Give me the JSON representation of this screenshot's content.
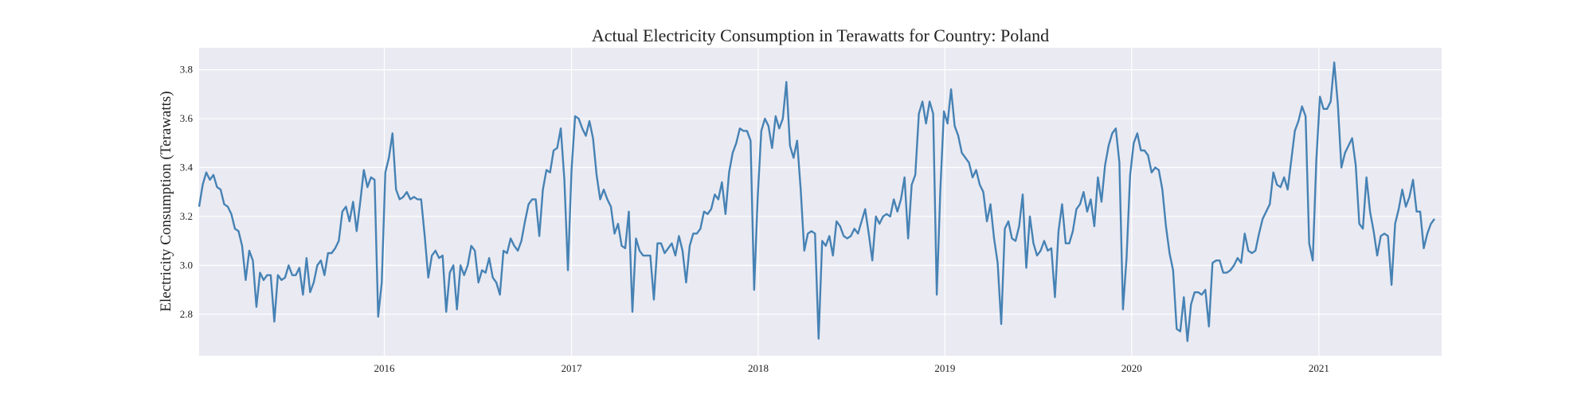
{
  "chart_data": {
    "type": "line",
    "title": "Actual Electricity Consumption in Terawatts for Country: Poland",
    "xlabel": "",
    "ylabel": "Electricity Consumption (Terawatts)",
    "xlim": [
      "2015-01-04",
      "2021-08-29"
    ],
    "ylim": [
      2.63,
      3.89
    ],
    "x_ticks": [
      "2016",
      "2017",
      "2018",
      "2019",
      "2020",
      "2021"
    ],
    "y_ticks": [
      "2.8",
      "3.0",
      "3.2",
      "3.4",
      "3.6",
      "3.8"
    ],
    "grid": true,
    "series": [
      {
        "color": "#4682b4",
        "x_start": "2015-01-04",
        "x_step_days": 7,
        "values": [
          3.24,
          3.33,
          3.38,
          3.35,
          3.37,
          3.32,
          3.31,
          3.25,
          3.24,
          3.21,
          3.15,
          3.14,
          3.08,
          2.94,
          3.06,
          3.02,
          2.83,
          2.97,
          2.94,
          2.96,
          2.96,
          2.77,
          2.96,
          2.94,
          2.95,
          3.0,
          2.96,
          2.96,
          2.99,
          2.88,
          3.03,
          2.89,
          2.93,
          3.0,
          3.02,
          2.96,
          3.05,
          3.05,
          3.07,
          3.1,
          3.22,
          3.24,
          3.18,
          3.26,
          3.14,
          3.26,
          3.39,
          3.32,
          3.36,
          3.35,
          2.79,
          2.93,
          3.38,
          3.44,
          3.54,
          3.31,
          3.27,
          3.28,
          3.3,
          3.27,
          3.28,
          3.27,
          3.27,
          3.12,
          2.95,
          3.04,
          3.06,
          3.03,
          3.04,
          2.81,
          2.97,
          3.0,
          2.82,
          3.0,
          2.96,
          3.0,
          3.08,
          3.06,
          2.93,
          2.98,
          2.97,
          3.03,
          2.95,
          2.93,
          2.88,
          3.06,
          3.05,
          3.11,
          3.08,
          3.06,
          3.1,
          3.18,
          3.25,
          3.27,
          3.27,
          3.12,
          3.31,
          3.39,
          3.38,
          3.47,
          3.48,
          3.56,
          3.35,
          2.98,
          3.39,
          3.61,
          3.6,
          3.56,
          3.53,
          3.59,
          3.52,
          3.37,
          3.27,
          3.31,
          3.27,
          3.24,
          3.13,
          3.17,
          3.08,
          3.07,
          3.22,
          2.81,
          3.11,
          3.06,
          3.04,
          3.04,
          3.04,
          2.86,
          3.09,
          3.09,
          3.05,
          3.07,
          3.09,
          3.04,
          3.12,
          3.06,
          2.93,
          3.08,
          3.13,
          3.13,
          3.15,
          3.22,
          3.21,
          3.23,
          3.29,
          3.27,
          3.34,
          3.21,
          3.38,
          3.46,
          3.5,
          3.56,
          3.55,
          3.55,
          3.51,
          2.9,
          3.28,
          3.55,
          3.6,
          3.57,
          3.48,
          3.61,
          3.56,
          3.6,
          3.75,
          3.49,
          3.44,
          3.51,
          3.31,
          3.06,
          3.13,
          3.14,
          3.13,
          2.7,
          3.1,
          3.08,
          3.12,
          3.04,
          3.18,
          3.16,
          3.12,
          3.11,
          3.12,
          3.15,
          3.13,
          3.18,
          3.23,
          3.13,
          3.02,
          3.2,
          3.17,
          3.2,
          3.21,
          3.2,
          3.27,
          3.22,
          3.27,
          3.36,
          3.11,
          3.33,
          3.37,
          3.62,
          3.67,
          3.58,
          3.67,
          3.62,
          2.88,
          3.31,
          3.63,
          3.58,
          3.72,
          3.57,
          3.53,
          3.46,
          3.44,
          3.42,
          3.36,
          3.39,
          3.33,
          3.3,
          3.18,
          3.25,
          3.11,
          3.01,
          2.76,
          3.15,
          3.18,
          3.11,
          3.1,
          3.16,
          3.29,
          2.99,
          3.2,
          3.09,
          3.04,
          3.06,
          3.1,
          3.06,
          3.07,
          2.87,
          3.14,
          3.25,
          3.09,
          3.09,
          3.14,
          3.23,
          3.25,
          3.3,
          3.22,
          3.27,
          3.16,
          3.36,
          3.26,
          3.41,
          3.49,
          3.54,
          3.56,
          3.42,
          2.82,
          3.03,
          3.37,
          3.5,
          3.54,
          3.47,
          3.47,
          3.45,
          3.38,
          3.4,
          3.39,
          3.31,
          3.16,
          3.05,
          2.98,
          2.74,
          2.73,
          2.87,
          2.69,
          2.84,
          2.89,
          2.89,
          2.88,
          2.9,
          2.75,
          3.01,
          3.02,
          3.02,
          2.97,
          2.97,
          2.98,
          3.0,
          3.03,
          3.01,
          3.13,
          3.06,
          3.05,
          3.06,
          3.13,
          3.19,
          3.22,
          3.25,
          3.38,
          3.33,
          3.32,
          3.36,
          3.31,
          3.43,
          3.55,
          3.59,
          3.65,
          3.61,
          3.09,
          3.02,
          3.43,
          3.69,
          3.64,
          3.64,
          3.67,
          3.83,
          3.66,
          3.4,
          3.46,
          3.49,
          3.52,
          3.41,
          3.17,
          3.15,
          3.36,
          3.22,
          3.14,
          3.04,
          3.12,
          3.13,
          3.12,
          2.92,
          3.17,
          3.23,
          3.31,
          3.24,
          3.28,
          3.35,
          3.22,
          3.22,
          3.07,
          3.13,
          3.17,
          3.19
        ]
      }
    ]
  }
}
